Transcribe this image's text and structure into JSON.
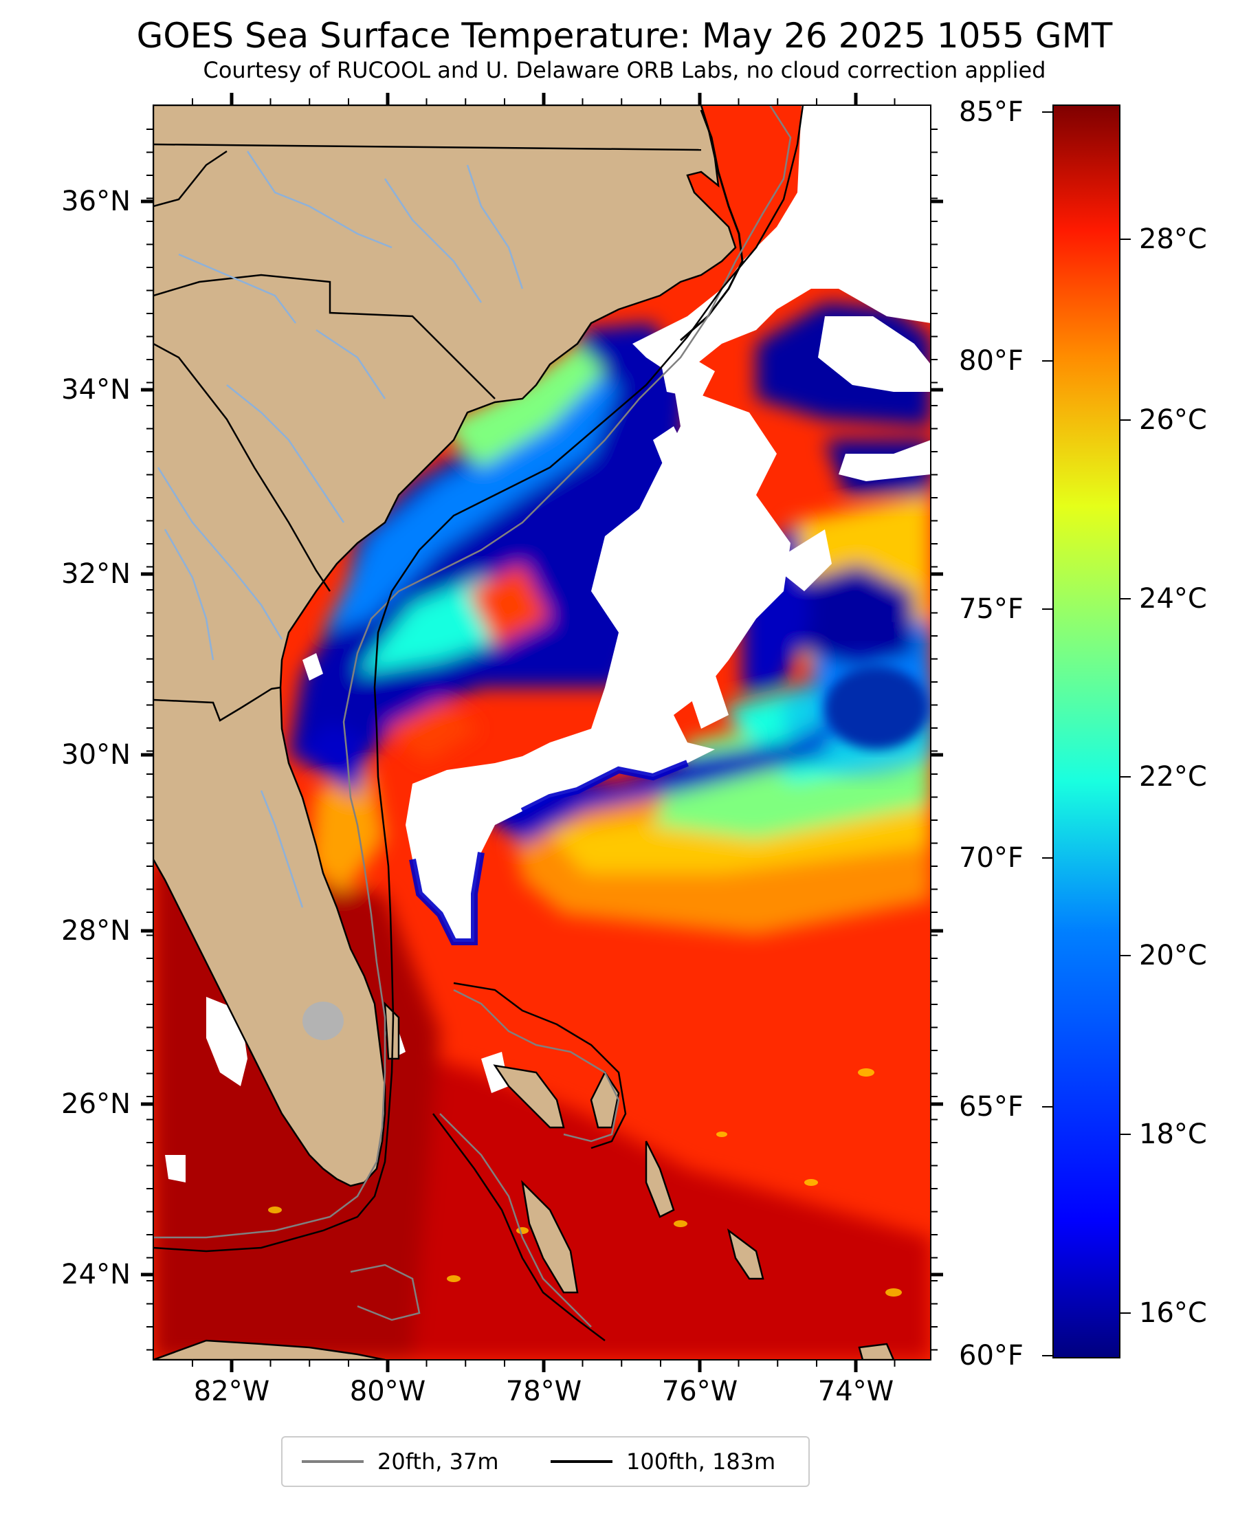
{
  "title": "GOES Sea Surface Temperature: May 26 2025 1055 GMT",
  "subtitle": "Courtesy of RUCOOL and U. Delaware ORB Labs, no cloud correction applied",
  "latitude_labels": [
    "36°N",
    "34°N",
    "32°N",
    "30°N",
    "28°N",
    "26°N",
    "24°N"
  ],
  "longitude_labels": [
    "82°W",
    "80°W",
    "78°W",
    "76°W",
    "74°W"
  ],
  "colorbar": {
    "fahrenheit_labels": [
      "85°F",
      "80°F",
      "75°F",
      "70°F",
      "65°F",
      "60°F"
    ],
    "celsius_labels": [
      "28°C",
      "26°C",
      "24°C",
      "22°C",
      "20°C",
      "18°C",
      "16°C"
    ],
    "colormap": "jet",
    "colors": [
      "#00007f",
      "#0000ff",
      "#007fff",
      "#19ffe0",
      "#7fff7f",
      "#e5ff19",
      "#ff8c00",
      "#ff1a00",
      "#7f0000"
    ]
  },
  "legend": {
    "items": [
      {
        "label": "20fth, 37m",
        "color": "#808080"
      },
      {
        "label": "100fth, 183m",
        "color": "#000000"
      }
    ]
  },
  "map_colors": {
    "land": "#d2b48c",
    "cloud": "#ffffff",
    "rivers": "#8eb1d9",
    "borders": "#000000",
    "lake": "#b3b3b3"
  }
}
